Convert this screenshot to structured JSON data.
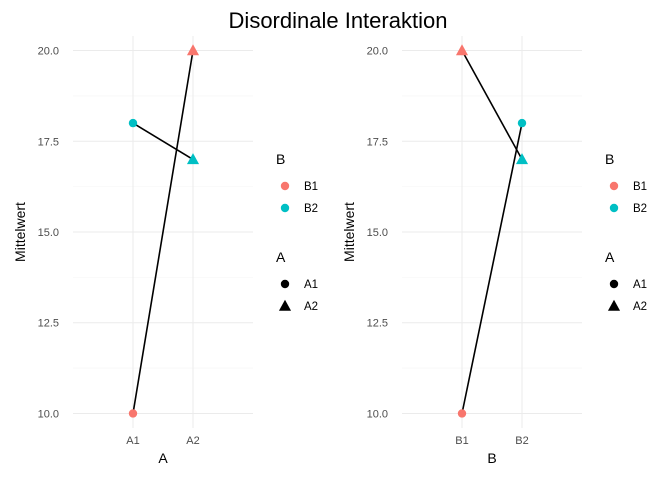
{
  "title": "Disordinale Interaktion",
  "colors": {
    "B1": "#F8766D",
    "B2": "#00BFC4",
    "line": "#000000",
    "grid": "#EBEBEB"
  },
  "chart_data": [
    {
      "type": "line",
      "xlabel": "A",
      "ylabel": "Mittelwert",
      "categories": [
        "A1",
        "A2"
      ],
      "ylim": [
        9.6,
        20.4
      ],
      "yticks": [
        10.0,
        12.5,
        15.0,
        17.5,
        20.0
      ],
      "ytick_labels": [
        "10.0",
        "12.5",
        "15.0",
        "17.5",
        "20.0"
      ],
      "points": [
        {
          "x": "A1",
          "y": 18,
          "color_group": "B2",
          "shape_group": "A1"
        },
        {
          "x": "A2",
          "y": 17,
          "color_group": "B2",
          "shape_group": "A2"
        },
        {
          "x": "A1",
          "y": 10,
          "color_group": "B1",
          "shape_group": "A1"
        },
        {
          "x": "A2",
          "y": 20,
          "color_group": "B1",
          "shape_group": "A2"
        }
      ],
      "segments": [
        {
          "from": [
            "A1",
            18
          ],
          "to": [
            "A2",
            17
          ]
        },
        {
          "from": [
            "A1",
            10
          ],
          "to": [
            "A2",
            20
          ]
        }
      ],
      "legends": [
        {
          "title": "B",
          "entries": [
            {
              "label": "B1",
              "color_group": "B1",
              "shape": "circle"
            },
            {
              "label": "B2",
              "color_group": "B2",
              "shape": "circle"
            }
          ]
        },
        {
          "title": "A",
          "entries": [
            {
              "label": "A1",
              "shape": "circle"
            },
            {
              "label": "A2",
              "shape": "triangle"
            }
          ]
        }
      ]
    },
    {
      "type": "line",
      "xlabel": "B",
      "ylabel": "Mittelwert",
      "categories": [
        "B1",
        "B2"
      ],
      "ylim": [
        9.6,
        20.4
      ],
      "yticks": [
        10.0,
        12.5,
        15.0,
        17.5,
        20.0
      ],
      "ytick_labels": [
        "10.0",
        "12.5",
        "15.0",
        "17.5",
        "20.0"
      ],
      "points": [
        {
          "x": "B1",
          "y": 20,
          "color_group": "B1",
          "shape_group": "A2"
        },
        {
          "x": "B2",
          "y": 17,
          "color_group": "B2",
          "shape_group": "A2"
        },
        {
          "x": "B1",
          "y": 10,
          "color_group": "B1",
          "shape_group": "A1"
        },
        {
          "x": "B2",
          "y": 18,
          "color_group": "B2",
          "shape_group": "A1"
        }
      ],
      "segments": [
        {
          "from": [
            "B1",
            20
          ],
          "to": [
            "B2",
            17
          ]
        },
        {
          "from": [
            "B1",
            10
          ],
          "to": [
            "B2",
            18
          ]
        }
      ],
      "legends": [
        {
          "title": "B",
          "entries": [
            {
              "label": "B1",
              "color_group": "B1",
              "shape": "circle"
            },
            {
              "label": "B2",
              "color_group": "B2",
              "shape": "circle"
            }
          ]
        },
        {
          "title": "A",
          "entries": [
            {
              "label": "A1",
              "shape": "circle"
            },
            {
              "label": "A2",
              "shape": "triangle"
            }
          ]
        }
      ]
    }
  ]
}
